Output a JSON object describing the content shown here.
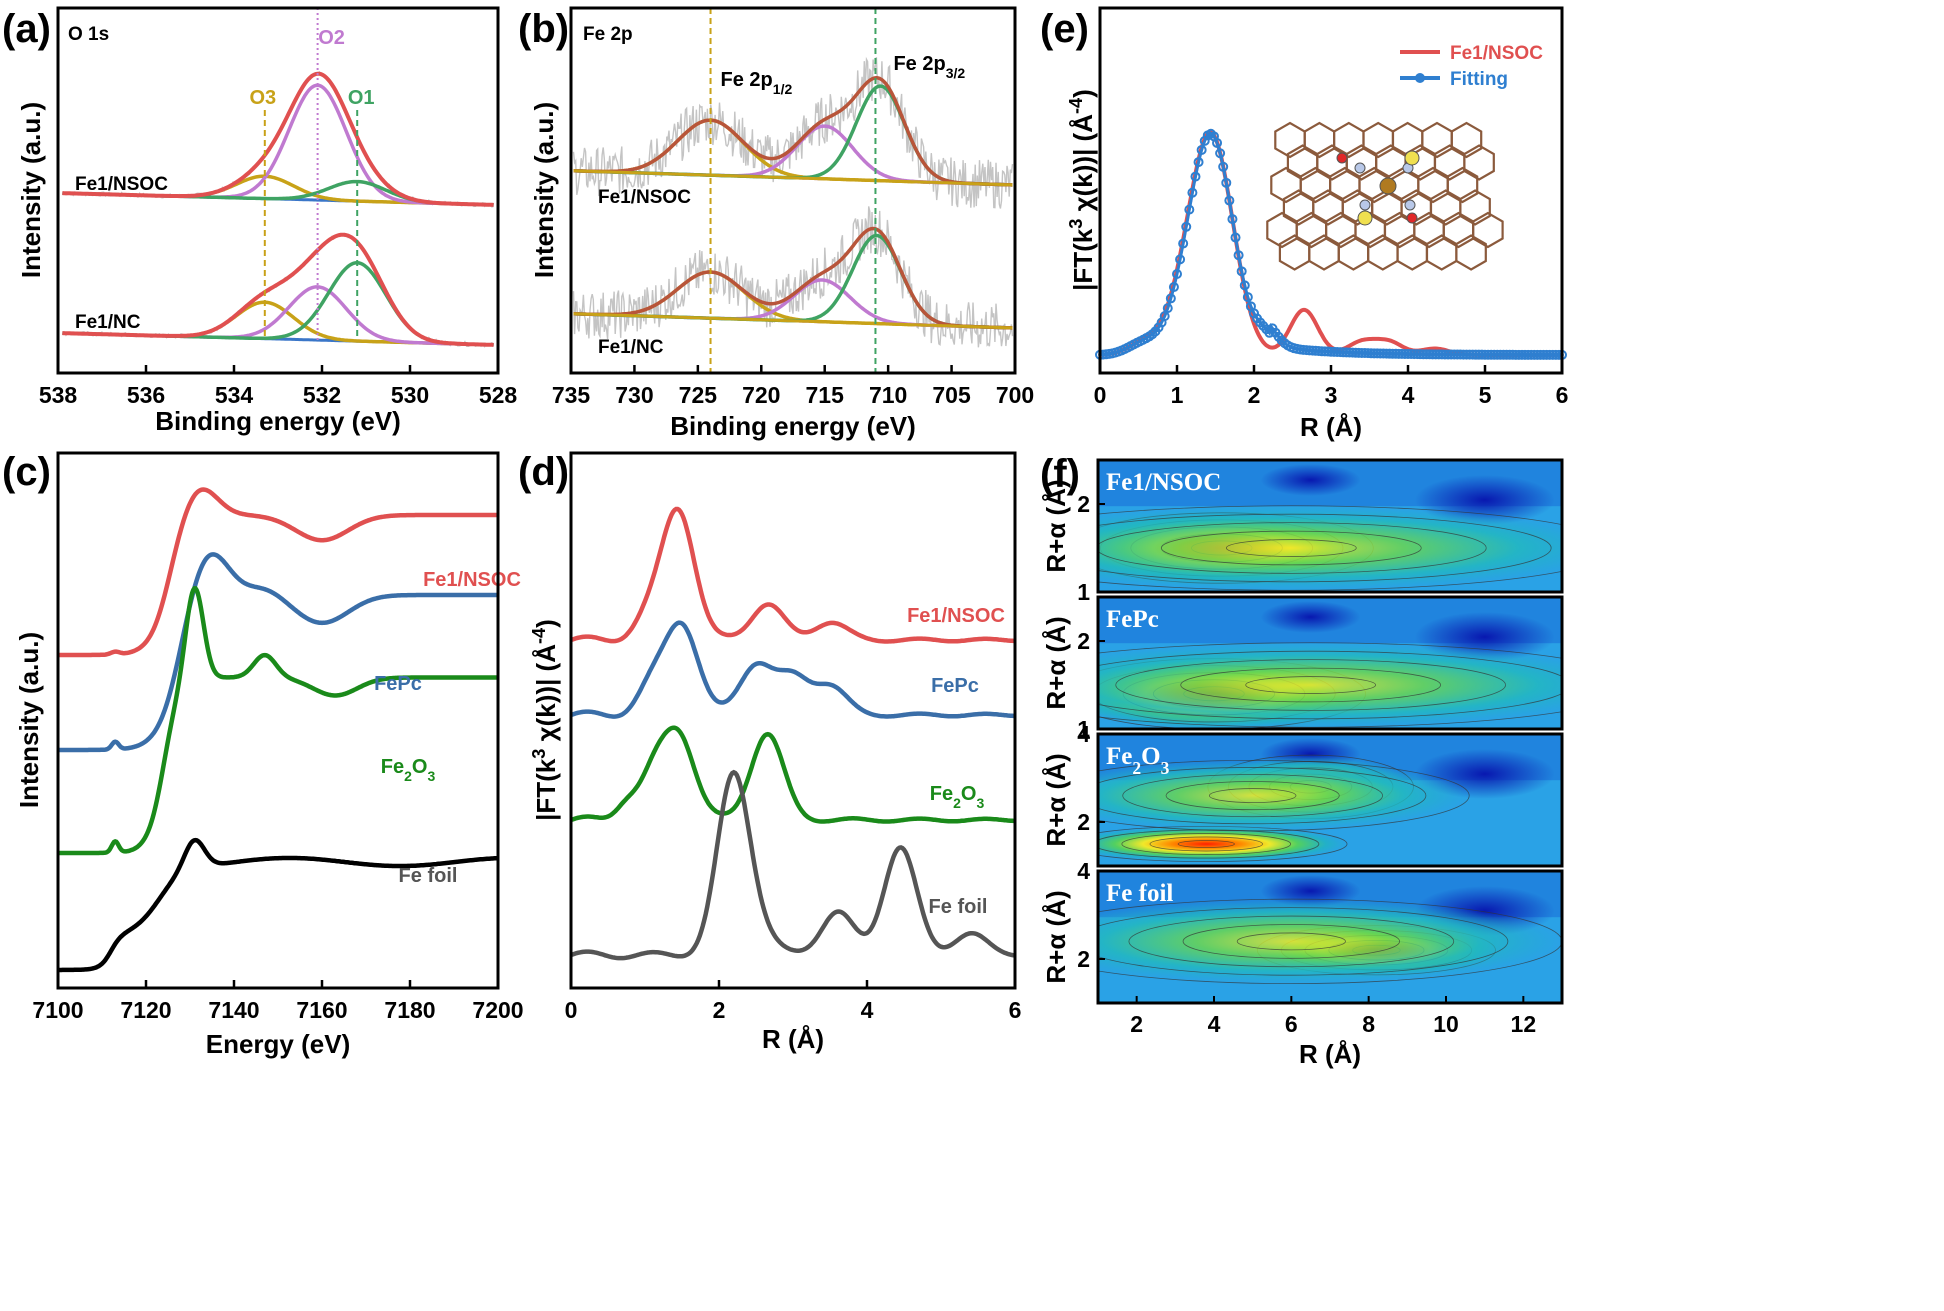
{
  "colors": {
    "fe1_nsoc": "#e05050",
    "fepc": "#3a6ea8",
    "fe2o3": "#1a8a1a",
    "fe_foil": "#000000",
    "fe_foil_ft": "#555555",
    "o1": "#3fa363",
    "o2": "#c07ad0",
    "o3": "#c8a218",
    "baseline": "#3a76c8",
    "fitting": "#2f7fd0",
    "raw": "#c4c4c4"
  },
  "chart_data": [
    {
      "id": "a",
      "panel_label": "(a)",
      "type": "line",
      "corner_label": "O 1s",
      "xlabel": "Binding energy (eV)",
      "ylabel": "Intensity (a.u.)",
      "xlim": [
        538,
        528
      ],
      "x_reversed": true,
      "xticks": [
        "538",
        "536",
        "534",
        "532",
        "530",
        "528"
      ],
      "peak_labels": [
        {
          "text": "O3",
          "x": 533.3
        },
        {
          "text": "O2",
          "x": 532.1
        },
        {
          "text": "O1",
          "x": 531.2
        }
      ],
      "samples": [
        {
          "name": "Fe1/NSOC",
          "components": {
            "O3": [
              533.3,
              0.16
            ],
            "O2": [
              532.1,
              0.82
            ],
            "O1": [
              531.2,
              0.14
            ]
          }
        },
        {
          "name": "Fe1/NC",
          "components": {
            "O3": [
              533.3,
              0.26
            ],
            "O2": [
              532.1,
              0.38
            ],
            "O1": [
              531.2,
              0.56
            ]
          }
        }
      ]
    },
    {
      "id": "b",
      "panel_label": "(b)",
      "type": "line",
      "corner_label": "Fe 2p",
      "xlabel": "Binding energy (eV)",
      "ylabel": "Intensity (a.u.)",
      "xlim": [
        735,
        700
      ],
      "x_reversed": true,
      "xticks": [
        "735",
        "730",
        "725",
        "720",
        "715",
        "710",
        "705",
        "700"
      ],
      "peak_labels": [
        {
          "main": "Fe 2p",
          "sub": "1/2",
          "x": 724.0
        },
        {
          "main": "Fe 2p",
          "sub": "3/2",
          "x": 711.0
        }
      ],
      "samples": [
        {
          "name": "Fe1/NSOC",
          "components": {
            "2p1/2": [
              724.0,
              0.5
            ],
            "sat": [
              715.0,
              0.48
            ],
            "2p3/2": [
              710.6,
              0.86
            ]
          }
        },
        {
          "name": "Fe1/NC",
          "components": {
            "2p1/2": [
              724.0,
              0.42
            ],
            "sat": [
              715.2,
              0.38
            ],
            "2p3/2": [
              710.9,
              0.8
            ]
          }
        }
      ]
    },
    {
      "id": "c",
      "panel_label": "(c)",
      "type": "line",
      "xlabel": "Energy (eV)",
      "ylabel": "Intensity (a.u.)",
      "xlim": [
        7100,
        7200
      ],
      "xticks": [
        "7100",
        "7120",
        "7140",
        "7160",
        "7180",
        "7200"
      ],
      "series": [
        {
          "name": "Fe1/NSOC",
          "label_main": "Fe1/NSOC",
          "label_sub": "",
          "label_tail": "",
          "edge": 7125,
          "peak": 7132
        },
        {
          "name": "FePc",
          "label_main": "FePc",
          "label_sub": "",
          "label_tail": "",
          "edge": 7127,
          "peak": 7134
        },
        {
          "name": "Fe2O3",
          "label_main": "Fe",
          "label_sub": "2",
          "label_tail": "O",
          "label_sub2": "3",
          "edge": 7123,
          "peak": 7131
        },
        {
          "name": "Fe foil",
          "label_main": "Fe foil",
          "label_sub": "",
          "label_tail": "",
          "edge": 7112,
          "peak": 7131
        }
      ]
    },
    {
      "id": "d",
      "panel_label": "(d)",
      "type": "line",
      "xlabel": "R (Å)",
      "ylabel_main": "|FT(k",
      "ylabel_sup": "3",
      "ylabel_mid": " χ(k))| (Å",
      "ylabel_sup2": "-4",
      "ylabel_end": ")",
      "xlim": [
        0,
        6
      ],
      "xticks": [
        "0",
        "2",
        "4",
        "6"
      ],
      "series": [
        {
          "name": "Fe1/NSOC",
          "label_main": "Fe1/NSOC",
          "peaks": [
            [
              1.45,
              0.36
            ],
            [
              2.65,
              0.1
            ],
            [
              3.5,
              0.05
            ]
          ]
        },
        {
          "name": "FePc",
          "label_main": "FePc",
          "peaks": [
            [
              1.5,
              0.25
            ],
            [
              2.5,
              0.14
            ],
            [
              3.0,
              0.1
            ],
            [
              3.5,
              0.08
            ]
          ]
        },
        {
          "name": "Fe2O3",
          "label_main": "Fe",
          "label_sub": "2",
          "label_tail": "O",
          "label_sub2": "3",
          "peaks": [
            [
              1.45,
              0.24
            ],
            [
              2.65,
              0.24
            ]
          ]
        },
        {
          "name": "Fe foil",
          "label_main": "Fe foil",
          "peaks": [
            [
              2.2,
              0.5
            ],
            [
              3.6,
              0.12
            ],
            [
              4.45,
              0.3
            ],
            [
              5.4,
              0.06
            ]
          ]
        }
      ]
    },
    {
      "id": "e",
      "panel_label": "(e)",
      "type": "line",
      "xlabel": "R (Å)",
      "ylabel_main": "|FT(k",
      "ylabel_sup": "3",
      "ylabel_mid": " χ(k))| (Å",
      "ylabel_sup2": "-4",
      "ylabel_end": ")",
      "xlim": [
        0,
        6
      ],
      "xticks": [
        "0",
        "1",
        "2",
        "3",
        "4",
        "5",
        "6"
      ],
      "legend": [
        "Fe1/NSOC",
        "Fitting"
      ],
      "legend_position": "top-right",
      "inset": "graphene-lattice-with-single-Fe-site",
      "series": [
        {
          "name": "Fe1/NSOC",
          "main_peak": 1.45,
          "extra_peaks": [
            [
              2.65,
              0.21
            ],
            [
              3.4,
              0.06
            ],
            [
              3.75,
              0.06
            ],
            [
              4.35,
              0.03
            ]
          ]
        },
        {
          "name": "Fitting",
          "main_peak": 1.45,
          "extra_peaks": [
            [
              2.15,
              0.08
            ]
          ]
        }
      ]
    },
    {
      "id": "f",
      "panel_label": "(f)",
      "type": "heatmap",
      "xlabel": "R (Å)",
      "xlim": [
        1,
        13
      ],
      "xticks": [
        "2",
        "4",
        "6",
        "8",
        "10",
        "12"
      ],
      "subplots": [
        {
          "name_main": "Fe1/NSOC",
          "name_sub": "",
          "name_tail": "",
          "ylabel": "R+α (Å)",
          "yticks": [
            "1",
            "2"
          ],
          "ylim": [
            1,
            2.5
          ],
          "blobs": [
            [
              4.2,
              1.5,
              2.8,
              0.25,
              1.0
            ],
            [
              6.0,
              1.5,
              6.0,
              0.3,
              0.45
            ]
          ]
        },
        {
          "name_main": "FePc",
          "name_sub": "",
          "name_tail": "",
          "ylabel": "R+α (Å)",
          "yticks": [
            "1",
            "2"
          ],
          "ylim": [
            1,
            2.5
          ],
          "blobs": [
            [
              4.0,
              1.4,
              2.8,
              0.25,
              1.0
            ],
            [
              6.5,
              1.5,
              6.0,
              0.3,
              0.45
            ]
          ]
        },
        {
          "name_main": "Fe",
          "name_sub": "2",
          "name_tail": "O",
          "name_sub2": "3",
          "ylabel": "R+α (Å)",
          "yticks": [
            "2",
            "4"
          ],
          "ylim": [
            1,
            4
          ],
          "blobs": [
            [
              3.8,
              1.5,
              2.6,
              0.25,
              1.0
            ],
            [
              6.5,
              2.8,
              1.9,
              0.45,
              0.78
            ],
            [
              5.0,
              2.6,
              4.0,
              0.5,
              0.35
            ]
          ]
        },
        {
          "name_main": "Fe foil",
          "name_sub": "",
          "name_tail": "",
          "ylabel": "R+α (Å)",
          "yticks": [
            "2",
            "4"
          ],
          "ylim": [
            1,
            4
          ],
          "blobs": [
            [
              8.2,
              2.2,
              2.2,
              0.35,
              1.0
            ],
            [
              6.0,
              2.4,
              5.0,
              0.6,
              0.45
            ]
          ]
        }
      ]
    }
  ]
}
